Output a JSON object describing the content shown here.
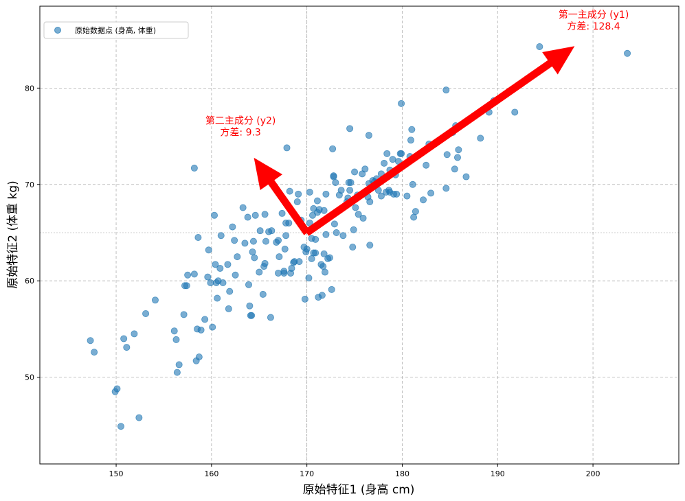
{
  "chart_data": {
    "type": "scatter",
    "xlabel": "原始特征1 (身高 cm)",
    "ylabel": "原始特征2 (体重 kg)",
    "xlim": [
      142,
      209
    ],
    "ylim": [
      41,
      88.5
    ],
    "xticks": [
      150,
      160,
      170,
      180,
      190,
      200
    ],
    "yticks": [
      50,
      60,
      70,
      80
    ],
    "grid": true,
    "legend": {
      "placement": "top-left",
      "entries": [
        "原始数据点 (身高, 体重)"
      ]
    },
    "mean": [
      170,
      65
    ],
    "series": [
      {
        "name": "原始数据点 (身高, 体重)",
        "color": "#1f77b4",
        "points": [
          [
            147.3,
            53.8
          ],
          [
            147.7,
            52.6
          ],
          [
            149.9,
            48.5
          ],
          [
            150.1,
            48.8
          ],
          [
            150.5,
            44.9
          ],
          [
            150.8,
            54.0
          ],
          [
            151.1,
            53.1
          ],
          [
            151.9,
            54.5
          ],
          [
            152.4,
            45.8
          ],
          [
            153.1,
            56.6
          ],
          [
            154.1,
            58.0
          ],
          [
            156.1,
            54.8
          ],
          [
            156.3,
            53.9
          ],
          [
            156.4,
            50.5
          ],
          [
            156.6,
            51.3
          ],
          [
            157.1,
            56.5
          ],
          [
            157.2,
            59.5
          ],
          [
            157.4,
            59.5
          ],
          [
            157.5,
            60.6
          ],
          [
            158.2,
            60.7
          ],
          [
            158.2,
            71.7
          ],
          [
            158.4,
            51.7
          ],
          [
            158.5,
            55.0
          ],
          [
            158.6,
            64.5
          ],
          [
            158.7,
            52.1
          ],
          [
            158.9,
            54.9
          ],
          [
            159.3,
            56.0
          ],
          [
            159.6,
            60.4
          ],
          [
            159.7,
            63.2
          ],
          [
            159.9,
            59.8
          ],
          [
            160.1,
            55.2
          ],
          [
            160.3,
            66.8
          ],
          [
            160.4,
            61.7
          ],
          [
            160.5,
            59.8
          ],
          [
            160.6,
            58.2
          ],
          [
            160.7,
            60.0
          ],
          [
            160.9,
            61.3
          ],
          [
            161.0,
            64.7
          ],
          [
            161.2,
            59.8
          ],
          [
            161.7,
            61.7
          ],
          [
            161.8,
            57.1
          ],
          [
            161.9,
            58.9
          ],
          [
            162.2,
            65.6
          ],
          [
            162.4,
            64.2
          ],
          [
            162.5,
            60.6
          ],
          [
            162.7,
            62.5
          ],
          [
            163.3,
            67.6
          ],
          [
            163.5,
            63.9
          ],
          [
            163.8,
            66.6
          ],
          [
            163.9,
            59.6
          ],
          [
            164.0,
            57.4
          ],
          [
            164.1,
            56.4
          ],
          [
            164.2,
            56.4
          ],
          [
            164.3,
            63.0
          ],
          [
            164.4,
            64.1
          ],
          [
            164.5,
            62.4
          ],
          [
            164.6,
            66.8
          ],
          [
            165.0,
            60.9
          ],
          [
            165.1,
            65.2
          ],
          [
            165.3,
            71.1
          ],
          [
            165.4,
            58.6
          ],
          [
            165.5,
            61.5
          ],
          [
            165.6,
            61.8
          ],
          [
            165.6,
            66.9
          ],
          [
            165.7,
            64.1
          ],
          [
            166.0,
            65.1
          ],
          [
            166.2,
            56.2
          ],
          [
            166.3,
            65.2
          ],
          [
            166.8,
            64.0
          ],
          [
            167.0,
            64.2
          ],
          [
            167.0,
            60.8
          ],
          [
            167.1,
            62.5
          ],
          [
            167.4,
            67.0
          ],
          [
            167.6,
            60.8
          ],
          [
            167.6,
            61.0
          ],
          [
            167.7,
            63.3
          ],
          [
            167.8,
            64.7
          ],
          [
            167.8,
            66.0
          ],
          [
            167.9,
            73.8
          ],
          [
            168.1,
            66.0
          ],
          [
            168.2,
            69.3
          ],
          [
            168.3,
            60.8
          ],
          [
            168.4,
            61.3
          ],
          [
            168.6,
            61.9
          ],
          [
            168.7,
            62.0
          ],
          [
            169.0,
            68.2
          ],
          [
            169.1,
            69.0
          ],
          [
            169.2,
            62.0
          ],
          [
            169.4,
            66.3
          ],
          [
            169.7,
            63.5
          ],
          [
            169.8,
            58.1
          ],
          [
            169.9,
            63.0
          ],
          [
            170.0,
            63.3
          ],
          [
            170.2,
            60.3
          ],
          [
            170.3,
            66.0
          ],
          [
            170.3,
            69.2
          ],
          [
            170.5,
            62.3
          ],
          [
            170.5,
            64.4
          ],
          [
            170.6,
            66.8
          ],
          [
            170.7,
            62.9
          ],
          [
            170.7,
            67.5
          ],
          [
            170.9,
            64.3
          ],
          [
            170.9,
            62.9
          ],
          [
            171.1,
            67.1
          ],
          [
            171.1,
            68.3
          ],
          [
            171.2,
            58.3
          ],
          [
            171.3,
            67.4
          ],
          [
            171.5,
            61.7
          ],
          [
            171.6,
            58.5
          ],
          [
            171.7,
            61.5
          ],
          [
            171.8,
            67.3
          ],
          [
            171.8,
            62.8
          ],
          [
            171.9,
            60.9
          ],
          [
            172.0,
            64.8
          ],
          [
            172.0,
            69.0
          ],
          [
            172.2,
            62.3
          ],
          [
            172.4,
            62.4
          ],
          [
            172.6,
            59.1
          ],
          [
            172.7,
            73.7
          ],
          [
            172.8,
            70.8
          ],
          [
            172.8,
            70.9
          ],
          [
            172.9,
            65.9
          ],
          [
            173.0,
            70.2
          ],
          [
            173.1,
            65.0
          ],
          [
            173.4,
            68.9
          ],
          [
            173.6,
            69.4
          ],
          [
            173.8,
            64.7
          ],
          [
            174.2,
            68.2
          ],
          [
            174.3,
            68.6
          ],
          [
            174.4,
            70.2
          ],
          [
            174.5,
            75.8
          ],
          [
            174.5,
            69.4
          ],
          [
            174.6,
            70.2
          ],
          [
            174.8,
            63.5
          ],
          [
            174.9,
            65.3
          ],
          [
            175.0,
            71.3
          ],
          [
            175.1,
            67.6
          ],
          [
            175.3,
            68.9
          ],
          [
            175.4,
            66.9
          ],
          [
            175.8,
            71.1
          ],
          [
            175.9,
            66.5
          ],
          [
            176.1,
            71.6
          ],
          [
            176.4,
            68.7
          ],
          [
            176.5,
            70.1
          ],
          [
            176.5,
            75.1
          ],
          [
            176.6,
            63.7
          ],
          [
            176.6,
            68.2
          ],
          [
            176.9,
            70.4
          ],
          [
            177.1,
            70.3
          ],
          [
            177.3,
            70.6
          ],
          [
            177.5,
            69.4
          ],
          [
            177.8,
            68.8
          ],
          [
            177.8,
            71.1
          ],
          [
            178.0,
            70.6
          ],
          [
            178.1,
            72.2
          ],
          [
            178.3,
            69.2
          ],
          [
            178.4,
            73.2
          ],
          [
            178.5,
            70.8
          ],
          [
            178.6,
            69.4
          ],
          [
            178.7,
            71.5
          ],
          [
            178.7,
            69.2
          ],
          [
            179.0,
            72.6
          ],
          [
            179.1,
            69.0
          ],
          [
            179.3,
            71.0
          ],
          [
            179.4,
            69.0
          ],
          [
            179.6,
            72.4
          ],
          [
            179.8,
            73.2
          ],
          [
            179.9,
            73.2
          ],
          [
            179.9,
            78.4
          ],
          [
            180.5,
            68.8
          ],
          [
            180.8,
            72.9
          ],
          [
            180.9,
            74.6
          ],
          [
            181.0,
            75.7
          ],
          [
            181.1,
            70.0
          ],
          [
            181.2,
            66.6
          ],
          [
            181.4,
            67.2
          ],
          [
            182.2,
            68.4
          ],
          [
            182.5,
            72.0
          ],
          [
            182.8,
            74.2
          ],
          [
            183.0,
            69.1
          ],
          [
            184.6,
            69.6
          ],
          [
            184.6,
            79.8
          ],
          [
            184.7,
            73.1
          ],
          [
            185.3,
            75.4
          ],
          [
            185.5,
            71.6
          ],
          [
            185.6,
            76.1
          ],
          [
            185.8,
            72.8
          ],
          [
            185.9,
            73.6
          ],
          [
            186.7,
            70.8
          ],
          [
            188.2,
            74.8
          ],
          [
            189.1,
            77.5
          ],
          [
            189.6,
            78.7
          ],
          [
            191.8,
            77.5
          ],
          [
            194.4,
            84.3
          ],
          [
            203.6,
            83.6
          ]
        ]
      }
    ],
    "components": [
      {
        "label": "第一主成分 (y1)",
        "variance_label": "方差: 128.4",
        "tip": [
          198.0,
          84.3
        ]
      },
      {
        "label": "第二主成分 (y2)",
        "variance_label": "方差: 9.3",
        "tip": [
          164.5,
          72.7
        ]
      }
    ],
    "colors": {
      "points": "#1f77b4",
      "arrows": "#ff0000",
      "grid": "#b0b0b0"
    }
  }
}
